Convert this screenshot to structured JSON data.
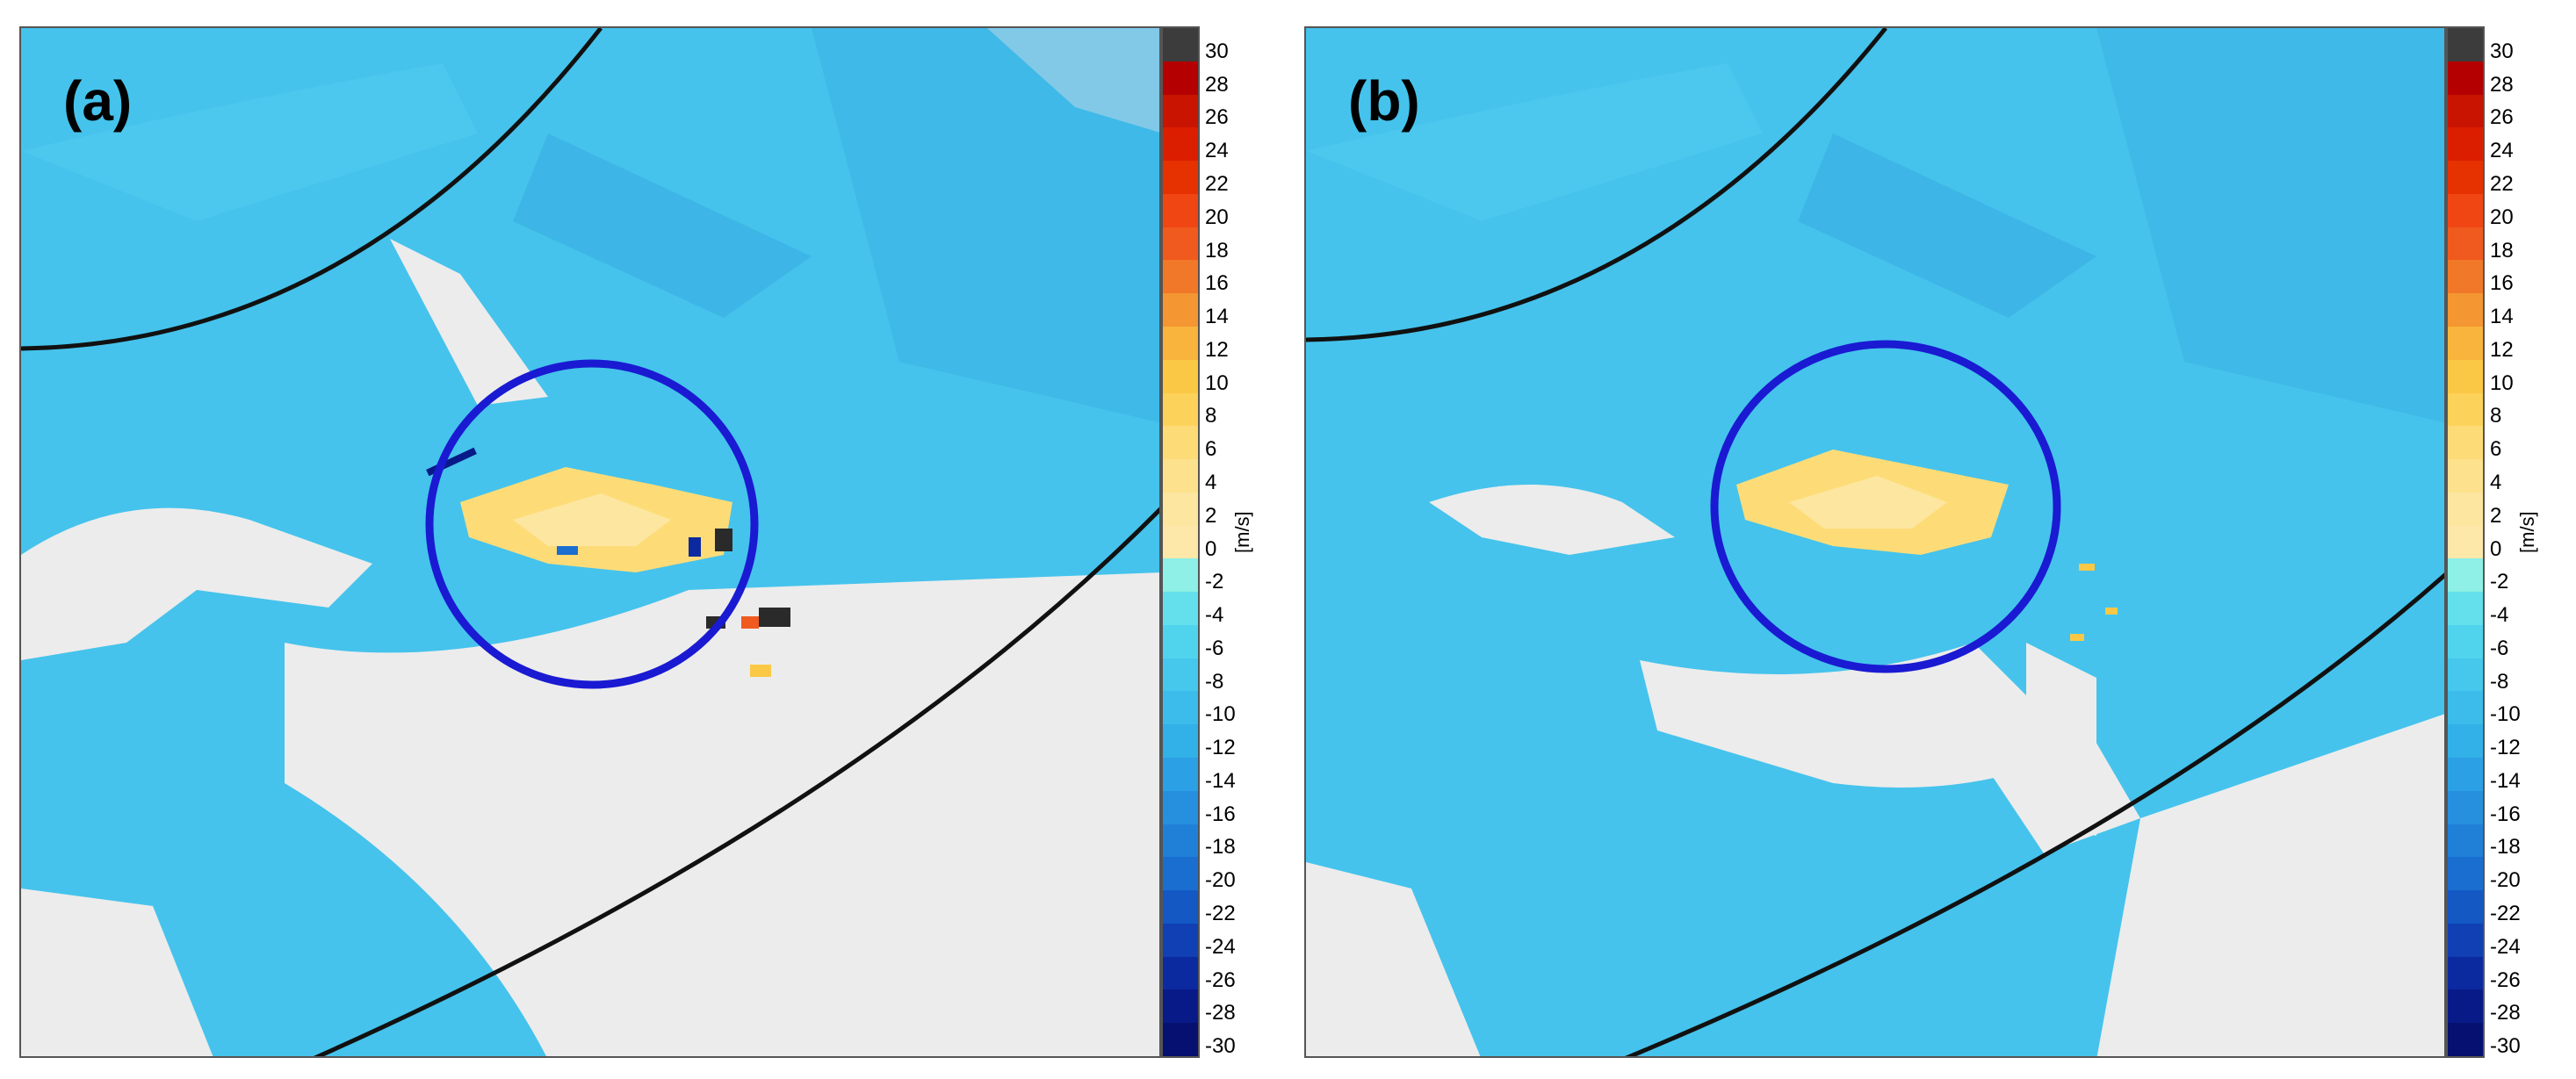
{
  "panels": [
    {
      "label": "(a)"
    },
    {
      "label": "(b)"
    }
  ],
  "colorbar": {
    "unit": "[m/s]",
    "ticks": [
      "30",
      "28",
      "26",
      "24",
      "22",
      "20",
      "18",
      "16",
      "14",
      "12",
      "10",
      "8",
      "6",
      "4",
      "2",
      "0",
      "-2",
      "-4",
      "-6",
      "-8",
      "-10",
      "-12",
      "-14",
      "-16",
      "-18",
      "-20",
      "-22",
      "-24",
      "-26",
      "-28",
      "-30"
    ],
    "colors": [
      "#3c3c3c",
      "#b40000",
      "#c81400",
      "#dc1e00",
      "#e63200",
      "#f04614",
      "#f05a1e",
      "#f07828",
      "#f49632",
      "#f8b43c",
      "#fbc846",
      "#fcd25a",
      "#fddc78",
      "#fde18c",
      "#fde6a0",
      "#fde8aa",
      "#8ef0e6",
      "#64e0ec",
      "#50d4ee",
      "#46c8ec",
      "#3cbcea",
      "#32b0e8",
      "#2ca0e4",
      "#2690de",
      "#2080d8",
      "#1a6ed0",
      "#1458c4",
      "#1040b4",
      "#0c2aa0",
      "#081a88",
      "#061070"
    ]
  },
  "colors": {
    "background_echo": "#45c3ec",
    "no_data": "#ececec",
    "range_ring": "#111111",
    "highlight_circle": "#1a1ad2"
  }
}
